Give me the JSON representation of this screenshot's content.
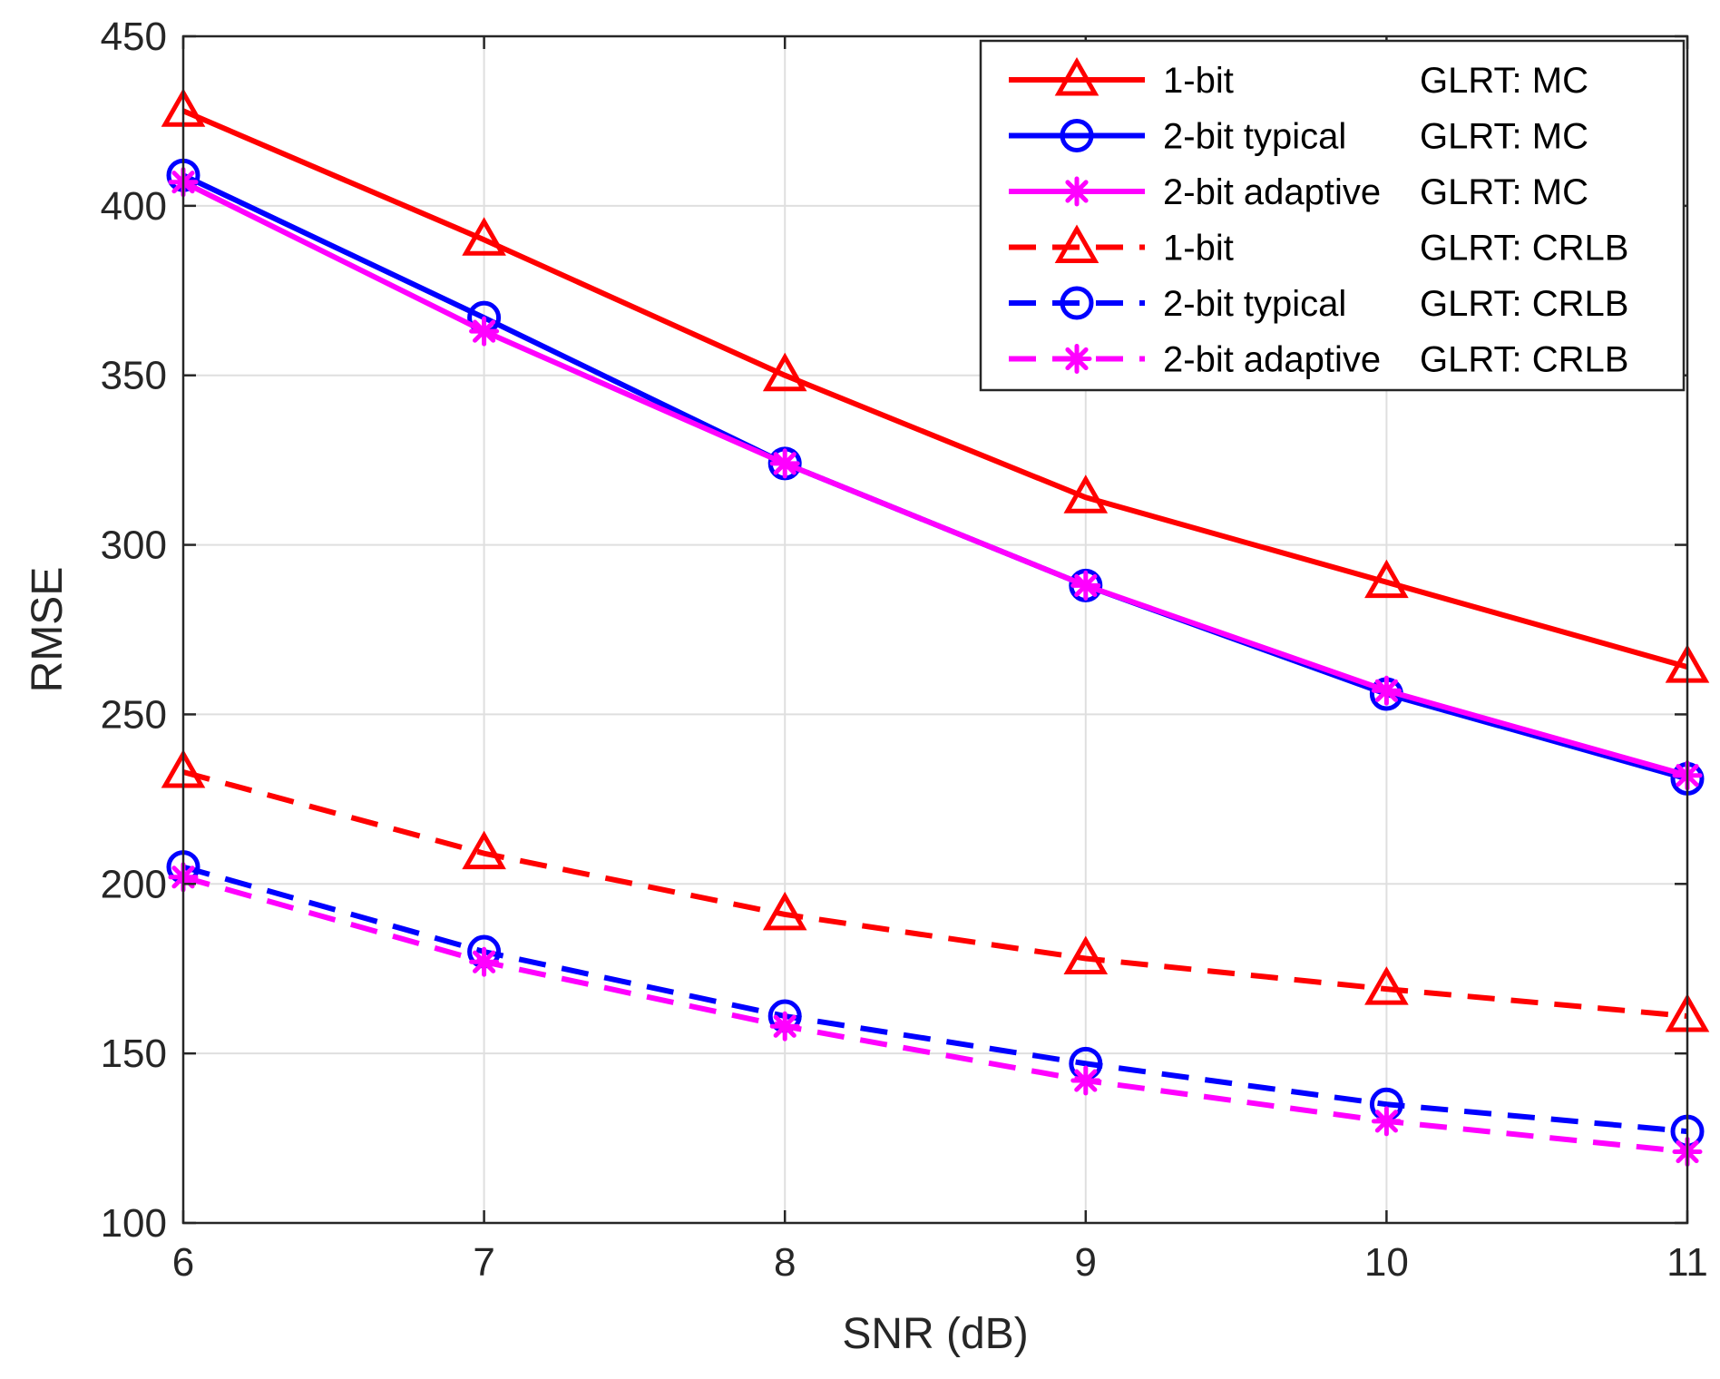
{
  "chart_data": {
    "type": "line",
    "title": "",
    "xlabel": "SNR (dB)",
    "ylabel": "RMSE",
    "xlim": [
      6,
      11
    ],
    "ylim": [
      100,
      450
    ],
    "xticks": [
      6,
      7,
      8,
      9,
      10,
      11
    ],
    "yticks": [
      100,
      150,
      200,
      250,
      300,
      350,
      400,
      450
    ],
    "grid": true,
    "legend_position": "top-right",
    "x": [
      6,
      7,
      8,
      9,
      10,
      11
    ],
    "series": [
      {
        "name": "1-bit",
        "method": "GLRT: MC",
        "color": "#ff0000",
        "style": "solid",
        "marker": "triangle",
        "values": [
          428,
          390,
          350,
          314,
          289,
          264
        ]
      },
      {
        "name": "2-bit typical",
        "method": "GLRT: MC",
        "color": "#0000ff",
        "style": "solid",
        "marker": "circle",
        "values": [
          409,
          367,
          324,
          288,
          256,
          231
        ]
      },
      {
        "name": "2-bit adaptive",
        "method": "GLRT: MC",
        "color": "#ff00ff",
        "style": "solid",
        "marker": "asterisk",
        "values": [
          407,
          363,
          324,
          288,
          257,
          232
        ]
      },
      {
        "name": "1-bit",
        "method": "GLRT: CRLB",
        "color": "#ff0000",
        "style": "dashed",
        "marker": "triangle",
        "values": [
          233,
          209,
          191,
          178,
          169,
          161
        ]
      },
      {
        "name": "2-bit typical",
        "method": "GLRT: CRLB",
        "color": "#0000ff",
        "style": "dashed",
        "marker": "circle",
        "values": [
          205,
          180,
          161,
          147,
          135,
          127
        ]
      },
      {
        "name": "2-bit adaptive",
        "method": "GLRT: CRLB",
        "color": "#ff00ff",
        "style": "dashed",
        "marker": "asterisk",
        "values": [
          202,
          177,
          158,
          142,
          130,
          121
        ]
      }
    ]
  }
}
